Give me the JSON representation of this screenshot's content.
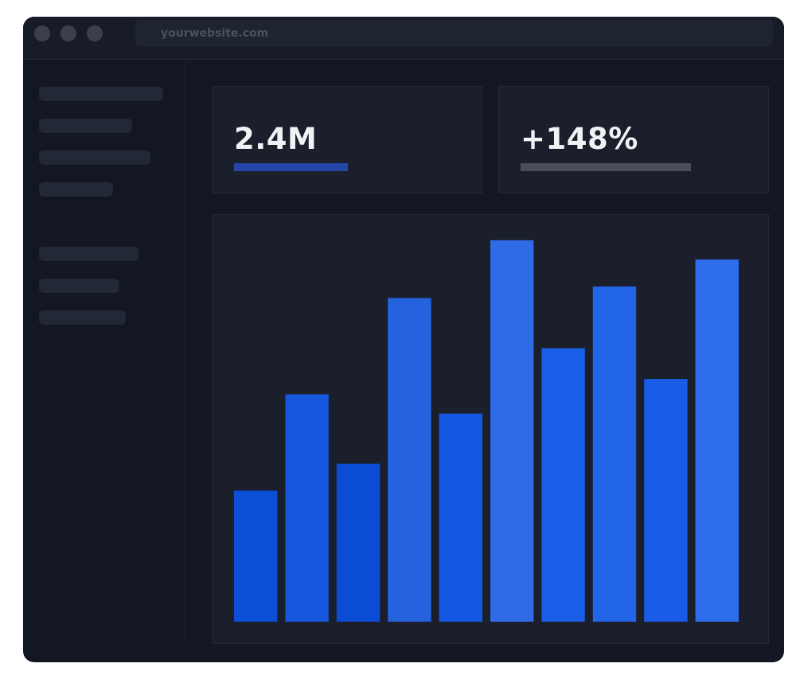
{
  "browser": {
    "url": "yourwebsite.com",
    "window_controls": [
      "close",
      "minimize",
      "maximize"
    ]
  },
  "stats": [
    {
      "value": "2.4M",
      "bar_fill": 0.42,
      "bar_color": "#2446a8"
    },
    {
      "value": "+148%",
      "bar_fill": 0.63,
      "bar_color": "#4a4e5c"
    }
  ],
  "colors": {
    "window_bg": "#121723",
    "card_bg": "#1b1f2c",
    "accent": "#2f6be6"
  },
  "chart_data": {
    "type": "bar",
    "categories": [
      "",
      "",
      "",
      "",
      "",
      "",
      "",
      "",
      "",
      ""
    ],
    "values": [
      34,
      59,
      41,
      84,
      54,
      99,
      71,
      87,
      63,
      94
    ],
    "ylim": [
      0,
      100
    ],
    "colors": [
      "#0a4fd6",
      "#1657dd",
      "#0a4dd4",
      "#2462de",
      "#1457e2",
      "#2f6be6",
      "#1a5de6",
      "#2265e8",
      "#1a5ce8",
      "#2d6ceb"
    ],
    "title": "",
    "xlabel": "",
    "ylabel": "",
    "grid": false,
    "legend": "none"
  }
}
